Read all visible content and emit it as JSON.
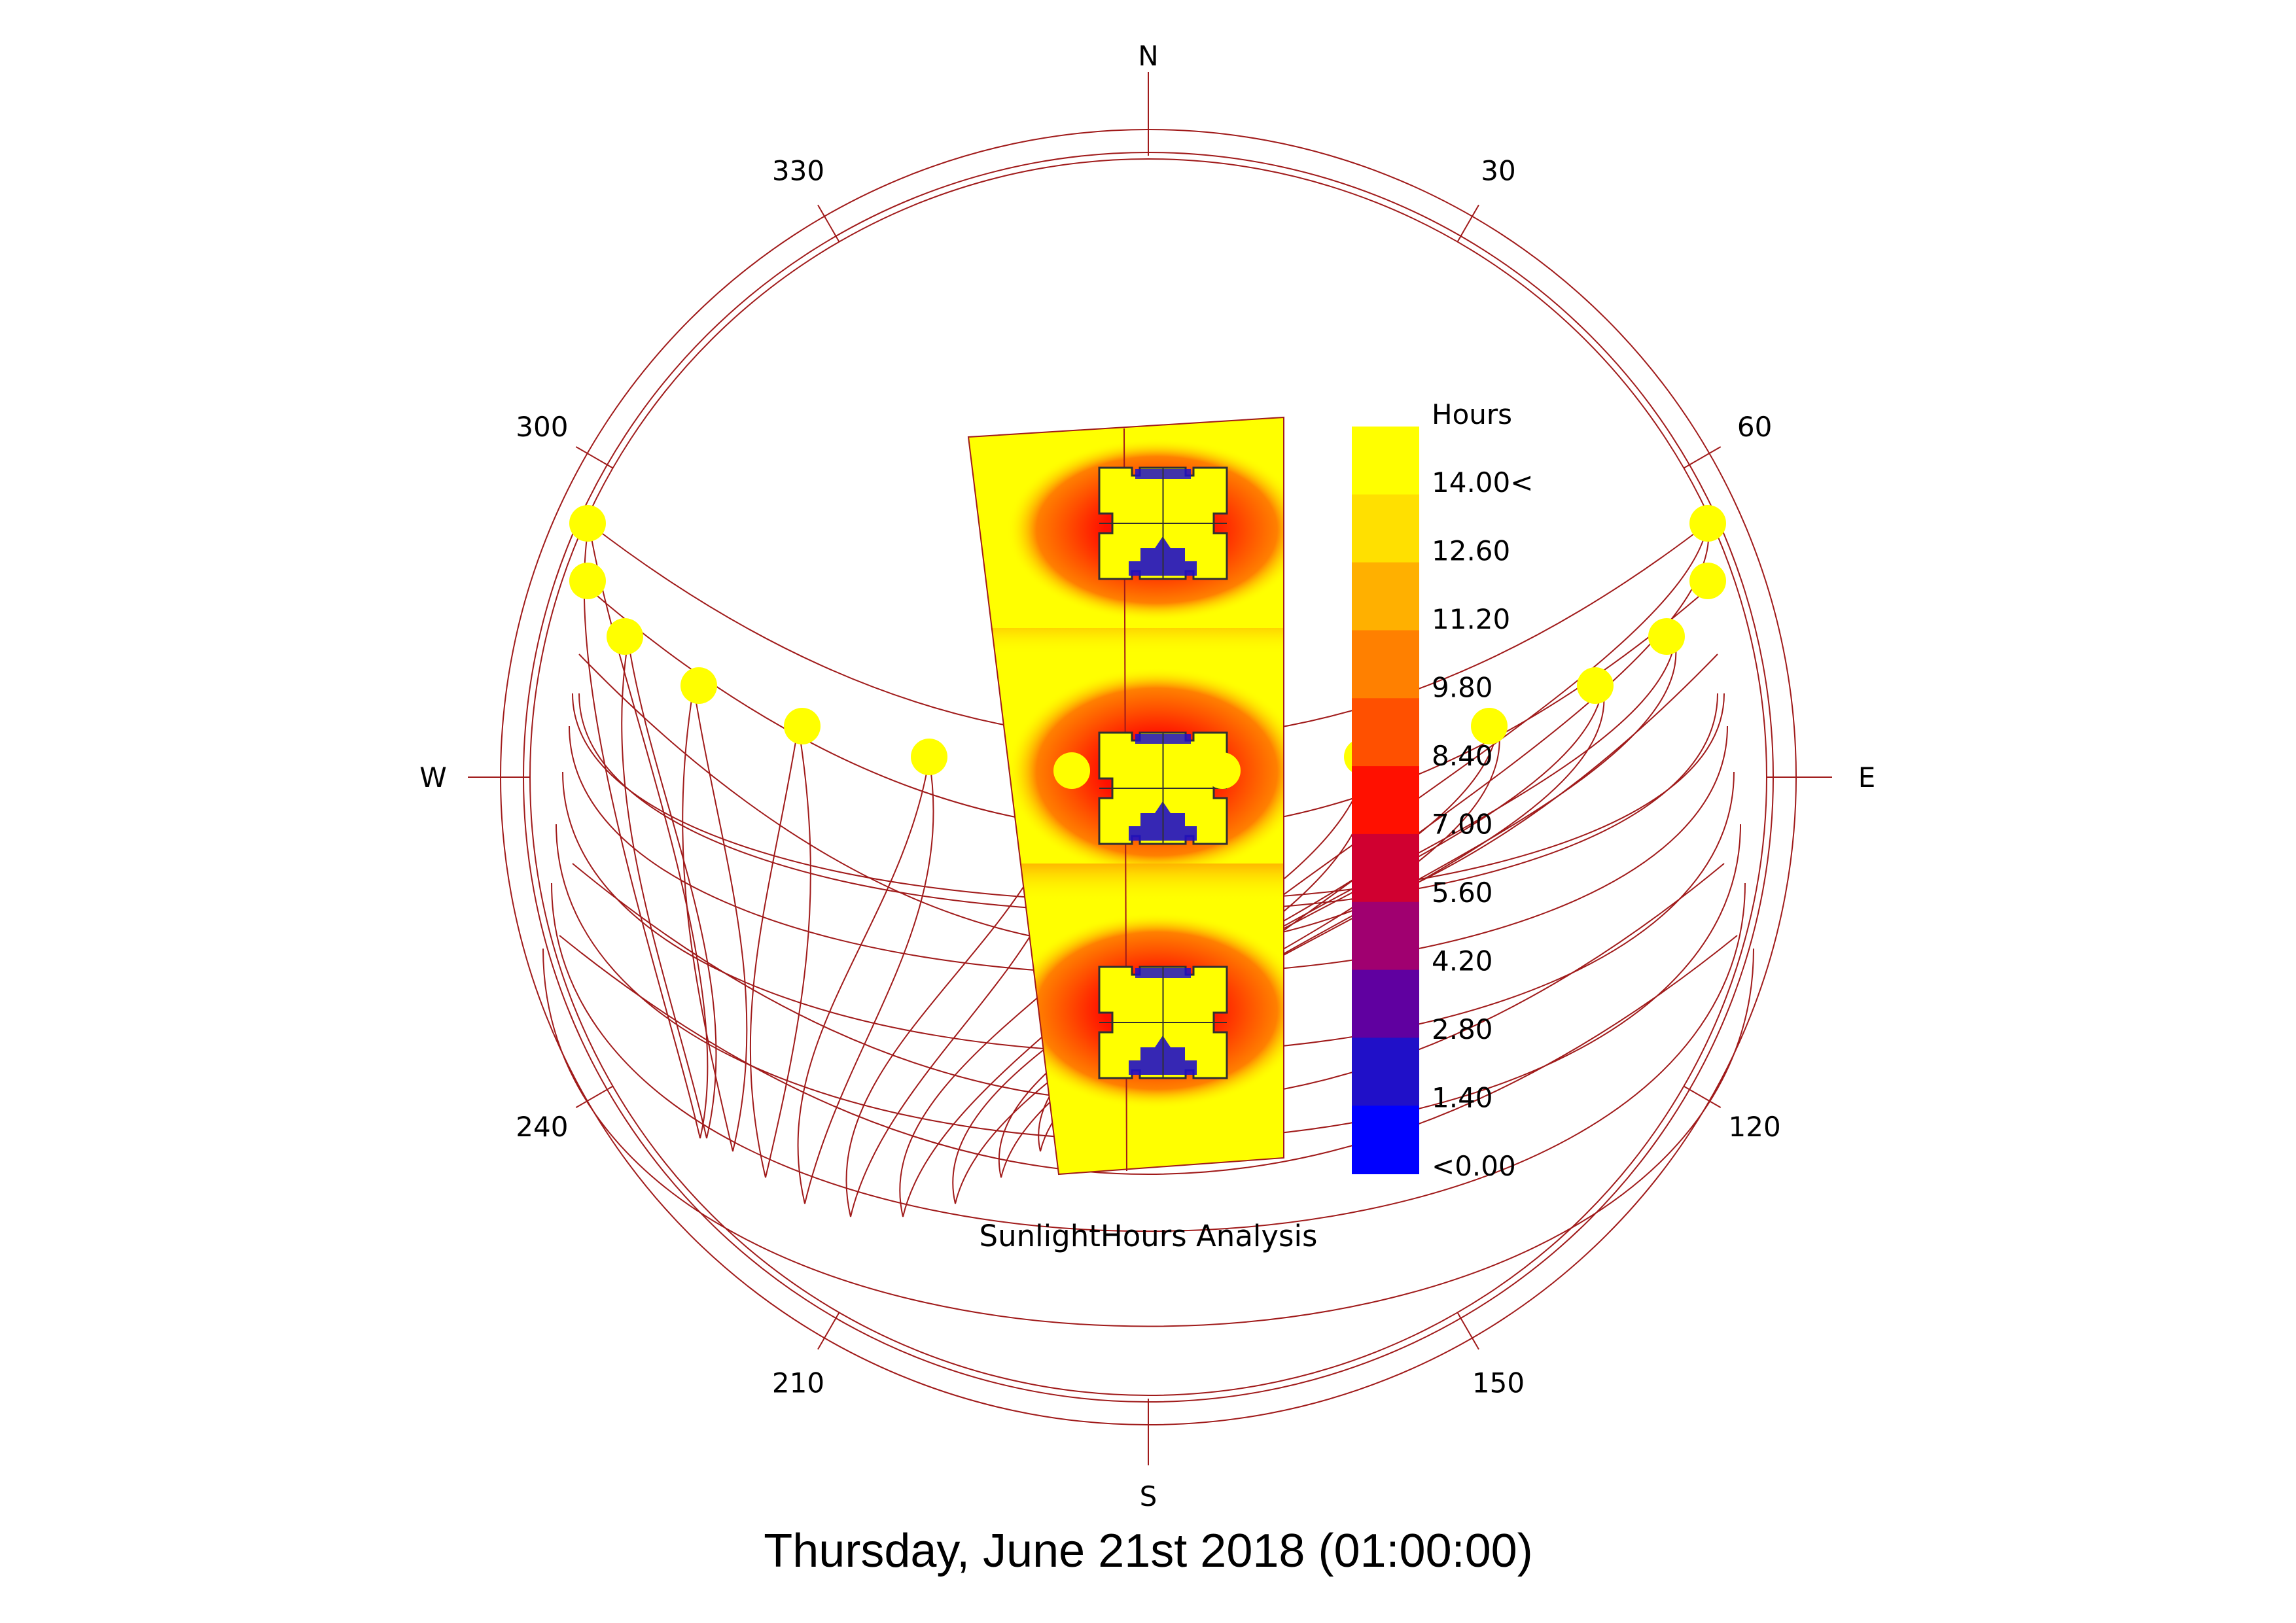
{
  "analysis_title": "SunlightHours Analysis",
  "date_caption": "Thursday, June 21st 2018 (01:00:00)",
  "compass": {
    "north": "N",
    "east": "E",
    "south": "S",
    "west": "W",
    "azimuth_labels": [
      "30",
      "60",
      "120",
      "150",
      "210",
      "240",
      "300",
      "330"
    ]
  },
  "legend": {
    "title": "Hours",
    "labels": [
      "14.00<",
      "12.60",
      "11.20",
      "9.80",
      "8.40",
      "7.00",
      "5.60",
      "4.20",
      "2.80",
      "1.40",
      "<0.00"
    ],
    "colors": [
      "#ffff00",
      "#ffe000",
      "#ffb000",
      "#ff8000",
      "#ff5000",
      "#ff1000",
      "#d00030",
      "#a00070",
      "#6000a0",
      "#2010c8",
      "#0000ff"
    ]
  },
  "colors": {
    "sunpath_line": "#a01a1a",
    "sun_marker": "#ffff00",
    "high_sun": "#ffff00",
    "low_sun": "#3010c0"
  },
  "sun_markers_count": 16
}
